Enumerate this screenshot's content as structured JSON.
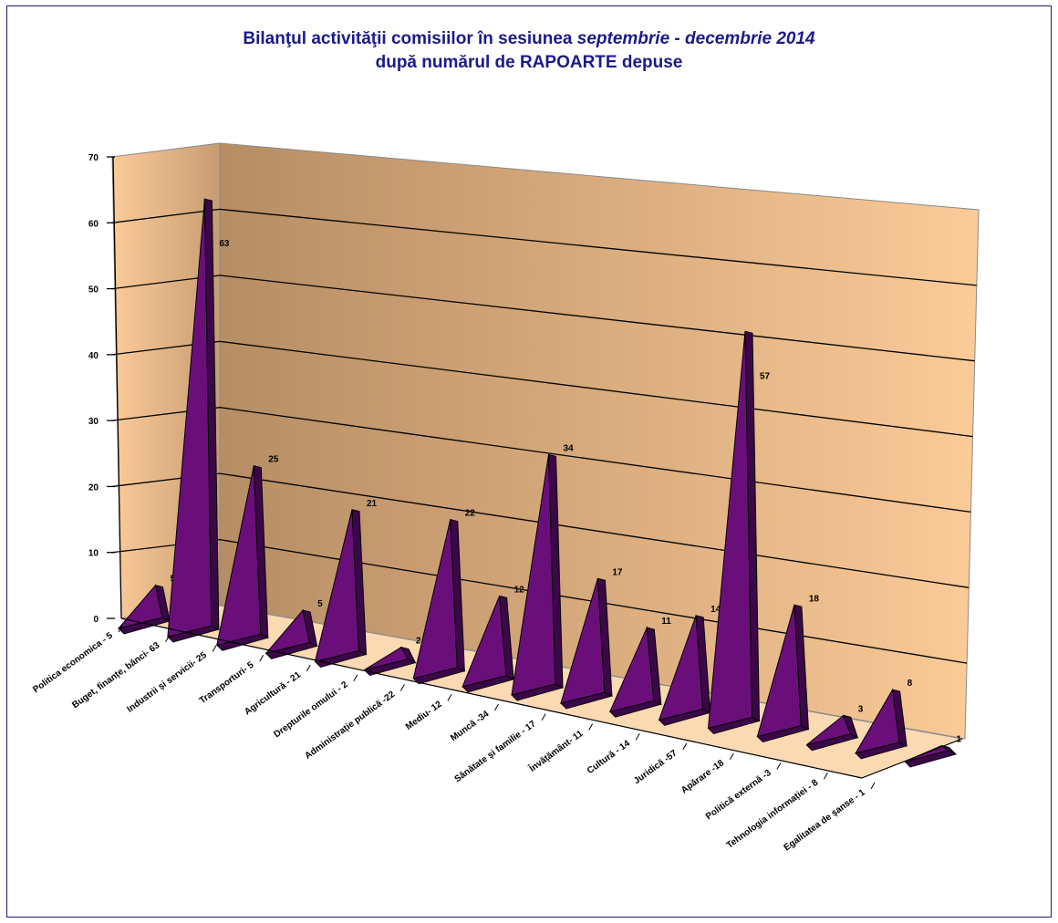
{
  "title": {
    "line1_prefix": "Bilanţul activităţii comisiilor în sesiunea ",
    "line1_italic": "septembrie - decembrie 2014",
    "line2": "după numărul de RAPOARTE depuse"
  },
  "chart_data": {
    "type": "bar",
    "style": "3d-pyramid",
    "title": "Bilanţul activităţii comisiilor în sesiunea septembrie - decembrie 2014 după numărul de RAPOARTE depuse",
    "ylim": [
      0,
      70
    ],
    "yticks": [
      0,
      10,
      20,
      30,
      40,
      50,
      60,
      70
    ],
    "grid": true,
    "categories": [
      "Politica economica - 5",
      "Buget, finanțe, bănci- 63",
      "Industrii și servicii- 25",
      "Transporturi- 5",
      "Agricultură - 21",
      "Drepturile omului - 2",
      "Administrație publică -22",
      "Mediu- 12",
      "Muncă -34",
      "Sănătate și familie - 17",
      "Învățământ- 11",
      "Cultură - 14",
      "Juridică -57",
      "Apărare -18",
      "Politică externă -3",
      "Tehnologia informației - 8",
      "Egalitatea de șanse - 1"
    ],
    "values": [
      5,
      63,
      25,
      5,
      21,
      2,
      22,
      12,
      34,
      17,
      11,
      14,
      57,
      18,
      3,
      8,
      1
    ],
    "colors": {
      "bar_front": "#6a0f7a",
      "bar_side": "#3c0748",
      "bar_edge": "#000000",
      "wall_light": "#f9c896",
      "wall_dark": "#b99068",
      "floor": "#fbd9b3"
    }
  }
}
